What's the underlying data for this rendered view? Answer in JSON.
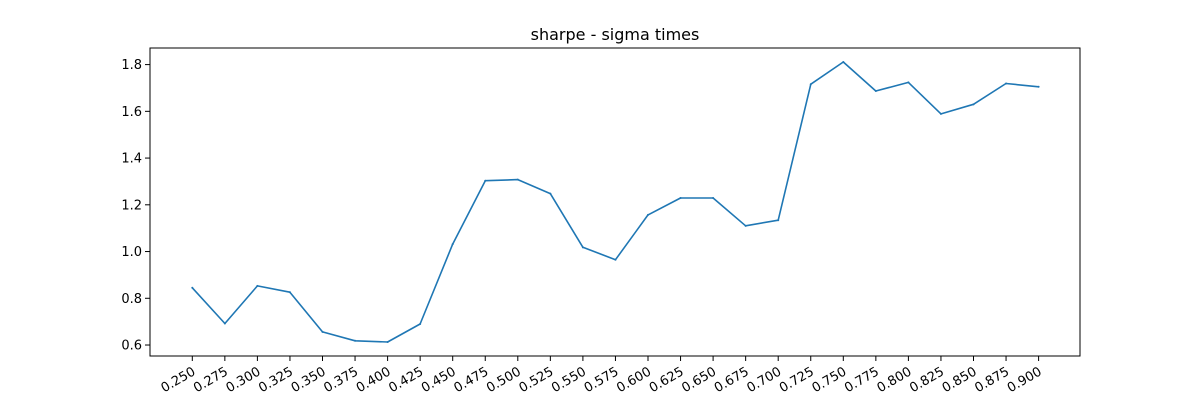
{
  "chart_data": {
    "type": "line",
    "title": "sharpe - sigma times",
    "xlabel": "",
    "ylabel": "",
    "x": [
      "0.250",
      "0.275",
      "0.300",
      "0.325",
      "0.350",
      "0.375",
      "0.400",
      "0.425",
      "0.450",
      "0.475",
      "0.500",
      "0.525",
      "0.550",
      "0.575",
      "0.600",
      "0.625",
      "0.650",
      "0.675",
      "0.700",
      "0.725",
      "0.750",
      "0.775",
      "0.800",
      "0.825",
      "0.850",
      "0.875",
      "0.900"
    ],
    "series": [
      {
        "values": [
          0.845,
          0.692,
          0.853,
          0.826,
          0.656,
          0.618,
          0.613,
          0.69,
          1.032,
          1.303,
          1.308,
          1.248,
          1.018,
          0.965,
          1.157,
          1.229,
          1.229,
          1.11,
          1.134,
          1.716,
          1.811,
          1.687,
          1.724,
          1.589,
          1.63,
          1.719,
          1.705
        ],
        "color": "#1f77b4"
      }
    ],
    "ylim": [
      0.553,
      1.871
    ],
    "yticks": [
      "0.6",
      "0.8",
      "1.0",
      "1.2",
      "1.4",
      "1.6",
      "1.8"
    ],
    "ytick_values": [
      0.6,
      0.8,
      1.0,
      1.2,
      1.4,
      1.6,
      1.8
    ],
    "grid": false,
    "legend": "none"
  }
}
